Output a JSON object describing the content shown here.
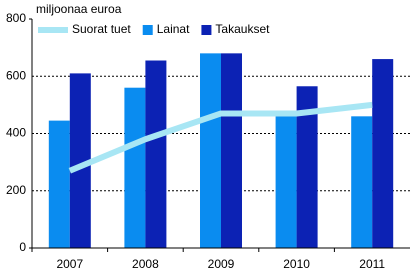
{
  "chart_data": {
    "type": "bar",
    "y_label": "miljoonaa euroa",
    "categories": [
      "2007",
      "2008",
      "2009",
      "2010",
      "2011"
    ],
    "series": [
      {
        "name": "Suorat tuet",
        "type": "line",
        "color": "#a8e6f4",
        "values": [
          270,
          380,
          470,
          470,
          500
        ]
      },
      {
        "name": "Lainat",
        "type": "bar",
        "color": "#0a8cf0",
        "values": [
          445,
          560,
          680,
          470,
          460
        ]
      },
      {
        "name": "Takaukset",
        "type": "bar",
        "color": "#0c22b4",
        "values": [
          610,
          655,
          680,
          565,
          660
        ]
      }
    ],
    "ylim": [
      0,
      800
    ],
    "yticks": [
      0,
      200,
      400,
      600,
      800
    ],
    "grid": true,
    "legend": "top-left"
  }
}
